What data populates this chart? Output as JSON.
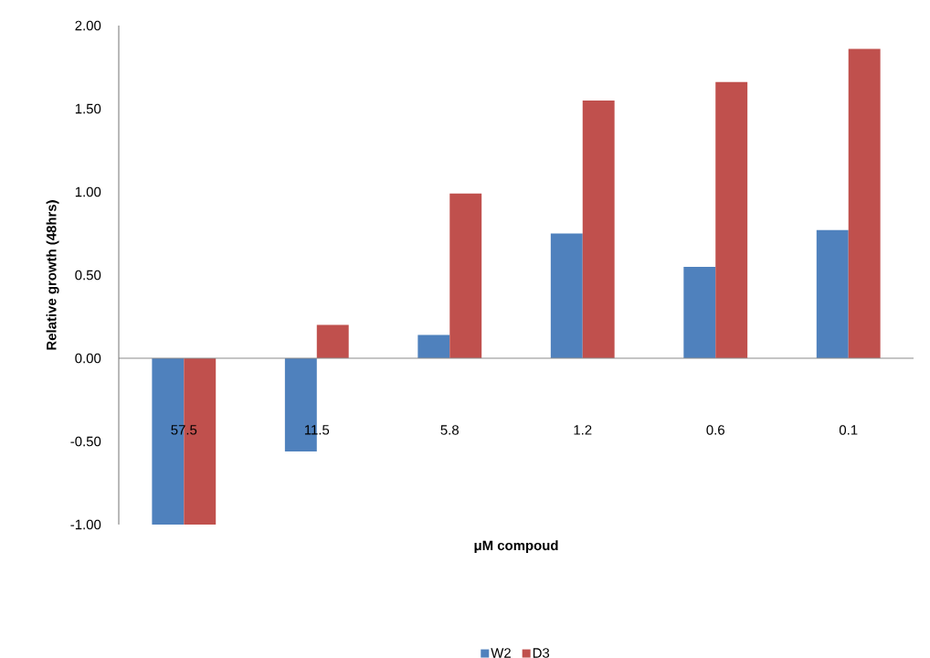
{
  "chart_data": {
    "type": "bar",
    "xlabel": "μM compoud",
    "ylabel": "Relative growth (48hrs)",
    "categories": [
      "57.5",
      "11.5",
      "5.8",
      "1.2",
      "0.6",
      "0.1"
    ],
    "series": [
      {
        "name": "W2",
        "color": "#4f81bd",
        "values": [
          -1.0,
          -0.56,
          0.14,
          0.75,
          0.55,
          0.77
        ]
      },
      {
        "name": "D3",
        "color": "#c0504d",
        "values": [
          -1.0,
          0.2,
          0.99,
          1.55,
          1.66,
          1.86
        ]
      }
    ],
    "ylim": [
      -1.0,
      2.0
    ],
    "yticks": [
      {
        "value": -1.0,
        "label": "-1.00"
      },
      {
        "value": -0.5,
        "label": "-0.50"
      },
      {
        "value": 0.0,
        "label": "0.00"
      },
      {
        "value": 0.5,
        "label": "0.50"
      },
      {
        "value": 1.0,
        "label": "1.00"
      },
      {
        "value": 1.5,
        "label": "1.50"
      },
      {
        "value": 2.0,
        "label": "2.00"
      }
    ],
    "ref_lines": [
      {
        "axis": "y",
        "value": 0.0,
        "color": "#8c8c8c"
      }
    ],
    "grid": false,
    "legend": "bottom"
  }
}
